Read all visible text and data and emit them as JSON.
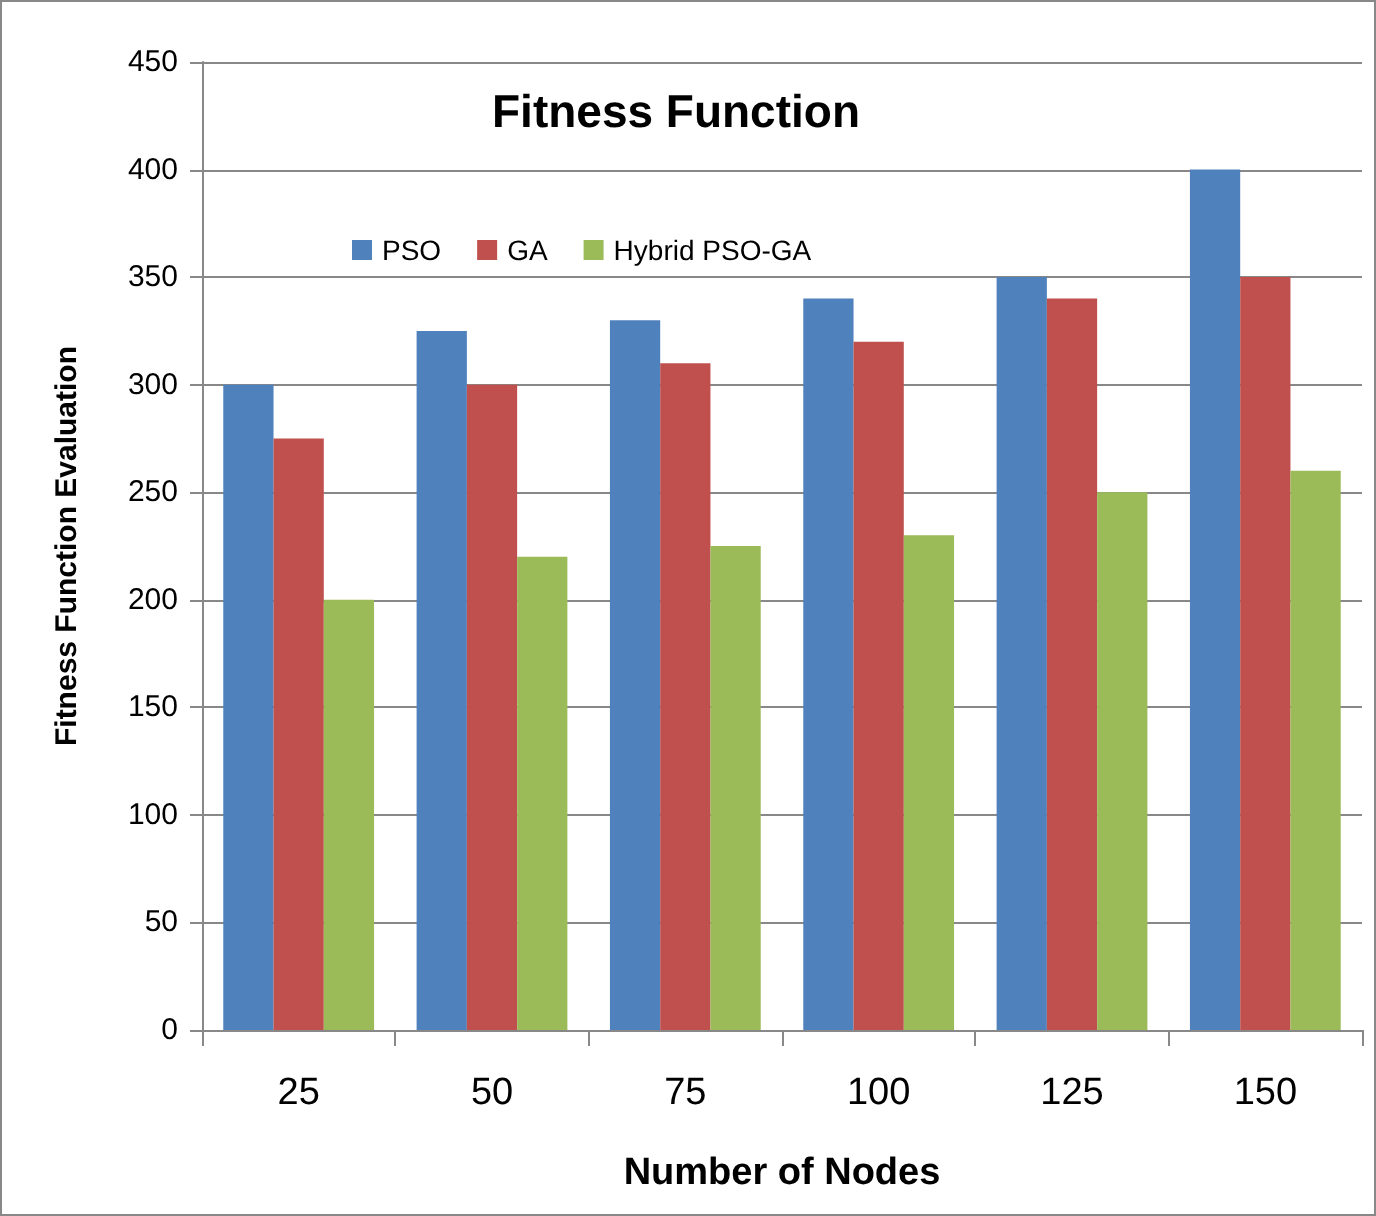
{
  "chart_data": {
    "type": "bar",
    "title": "Fitness Function",
    "xlabel": "Number of Nodes",
    "ylabel": "Fitness Function Evaluation",
    "categories": [
      "25",
      "50",
      "75",
      "100",
      "125",
      "150"
    ],
    "series": [
      {
        "name": "PSO",
        "color": "#4f81bd",
        "values": [
          300,
          325,
          330,
          340,
          350,
          400
        ]
      },
      {
        "name": "GA",
        "color": "#c0504d",
        "values": [
          275,
          300,
          310,
          320,
          340,
          350
        ]
      },
      {
        "name": "Hybrid PSO-GA",
        "color": "#9bbb59",
        "values": [
          200,
          220,
          225,
          230,
          250,
          260
        ]
      }
    ],
    "ylim": [
      0,
      450
    ],
    "yticks": [
      0,
      50,
      100,
      150,
      200,
      250,
      300,
      350,
      400,
      450
    ],
    "grid": "y",
    "legend": "top"
  }
}
